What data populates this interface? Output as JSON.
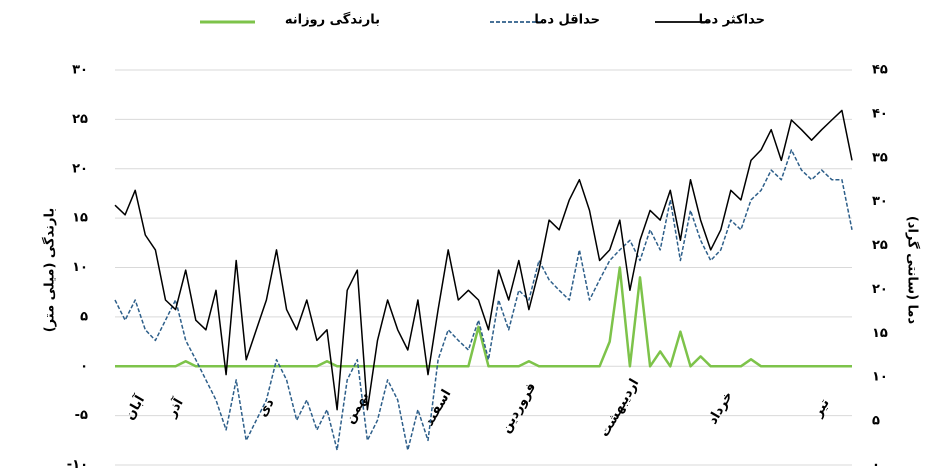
{
  "chart_data": {
    "type": "line",
    "legend": "top",
    "ylabel": "بارندگی (میلی متر)",
    "y2label": "دما (سانتی گراد)",
    "ylim": [
      -10,
      30
    ],
    "yticks": [
      {
        "value": -10,
        "label": "-۱۰"
      },
      {
        "value": -5,
        "label": "-۵"
      },
      {
        "value": 0,
        "label": "۰"
      },
      {
        "value": 5,
        "label": "۵"
      },
      {
        "value": 10,
        "label": "۱۰"
      },
      {
        "value": 15,
        "label": "۱۵"
      },
      {
        "value": 20,
        "label": "۲۰"
      },
      {
        "value": 25,
        "label": "۲۵"
      },
      {
        "value": 30,
        "label": "۳۰"
      }
    ],
    "y2lim": [
      0,
      45
    ],
    "y2ticks": [
      {
        "value": 0,
        "label": "۰"
      },
      {
        "value": 5,
        "label": "۵"
      },
      {
        "value": 10,
        "label": "۱۰"
      },
      {
        "value": 15,
        "label": "۱۵"
      },
      {
        "value": 20,
        "label": "۲۰"
      },
      {
        "value": 25,
        "label": "۲۵"
      },
      {
        "value": 30,
        "label": "۳۰"
      },
      {
        "value": 35,
        "label": "۳۵"
      },
      {
        "value": 40,
        "label": "۴۰"
      },
      {
        "value": 45,
        "label": "۴۵"
      }
    ],
    "grid": true,
    "categories": [
      null,
      null,
      "آبان",
      null,
      null,
      null,
      "آذر",
      null,
      null,
      null,
      null,
      null,
      null,
      null,
      null,
      "دی",
      null,
      null,
      null,
      null,
      null,
      null,
      null,
      null,
      "بهمن",
      null,
      null,
      null,
      null,
      null,
      null,
      null,
      "اسفند",
      null,
      null,
      null,
      null,
      null,
      null,
      null,
      "فروردین",
      null,
      null,
      null,
      null,
      null,
      null,
      null,
      null,
      null,
      "اردیبهشت",
      null,
      null,
      null,
      null,
      null,
      null,
      null,
      null,
      null,
      "خرداد",
      null,
      null,
      null,
      null,
      null,
      null,
      null,
      null,
      null,
      "تیر",
      null,
      null,
      null
    ],
    "series": [
      {
        "name": "حداکثر دما",
        "color": "#000000",
        "style": "solid",
        "axis": "y2",
        "values": [
          29.6,
          28.5,
          31.3,
          26.2,
          24.5,
          18.8,
          17.7,
          22.2,
          16.5,
          15.4,
          19.9,
          10.3,
          23.3,
          12.0,
          15.4,
          18.8,
          24.5,
          17.7,
          15.4,
          18.8,
          14.2,
          15.4,
          6.3,
          19.9,
          22.2,
          6.3,
          14.2,
          18.8,
          15.4,
          13.1,
          18.8,
          10.3,
          17.7,
          24.5,
          18.8,
          19.9,
          18.8,
          15.4,
          22.2,
          18.8,
          23.3,
          17.7,
          22.2,
          27.9,
          26.8,
          30.2,
          32.5,
          29.0,
          23.3,
          24.5,
          27.9,
          19.9,
          25.6,
          29.0,
          27.9,
          31.3,
          25.6,
          32.5,
          27.9,
          24.5,
          26.8,
          31.3,
          30.2,
          34.7,
          35.9,
          38.2,
          34.7,
          39.3,
          38.2,
          37.0,
          38.2,
          39.3,
          40.4,
          34.7
        ]
      },
      {
        "name": "حداقل دما",
        "color": "#2e5f8a",
        "style": "dashed",
        "axis": "y2",
        "values": [
          18.8,
          16.5,
          18.8,
          15.4,
          14.2,
          16.5,
          18.8,
          14.2,
          12.0,
          9.7,
          7.4,
          4.0,
          9.7,
          2.8,
          5.1,
          7.4,
          12.0,
          9.7,
          5.1,
          7.4,
          4.0,
          6.3,
          1.7,
          9.7,
          12.0,
          2.8,
          5.1,
          9.7,
          7.4,
          1.7,
          6.3,
          2.8,
          12.0,
          15.4,
          14.2,
          13.1,
          16.5,
          12.0,
          18.8,
          15.4,
          19.9,
          18.8,
          23.3,
          21.1,
          19.9,
          18.8,
          24.5,
          18.8,
          21.1,
          23.3,
          24.5,
          25.6,
          23.3,
          26.8,
          24.5,
          30.2,
          23.3,
          29.0,
          25.6,
          23.3,
          24.5,
          27.9,
          26.8,
          30.2,
          31.3,
          33.6,
          32.5,
          35.9,
          33.6,
          32.5,
          33.6,
          32.5,
          32.5,
          26.8
        ]
      },
      {
        "name": "بارندگی روزانه",
        "color": "#7dc34a",
        "style": "solid",
        "axis": "y",
        "values": [
          0,
          0,
          0,
          0,
          0,
          0,
          0,
          0.5,
          0,
          0,
          0,
          0,
          0,
          0,
          0,
          0,
          0,
          0,
          0,
          0,
          0,
          0.5,
          0,
          0,
          0,
          0,
          0,
          0,
          0,
          0,
          0,
          0,
          0,
          0,
          0,
          0,
          4,
          0,
          0,
          0,
          0,
          0.5,
          0,
          0,
          0,
          0,
          0,
          0,
          0,
          2.5,
          10,
          0,
          9,
          0,
          1.5,
          0,
          3.5,
          0,
          1,
          0,
          0,
          0,
          0,
          0.7,
          0,
          0,
          0,
          0,
          0,
          0,
          0,
          0,
          0,
          0
        ]
      }
    ]
  }
}
